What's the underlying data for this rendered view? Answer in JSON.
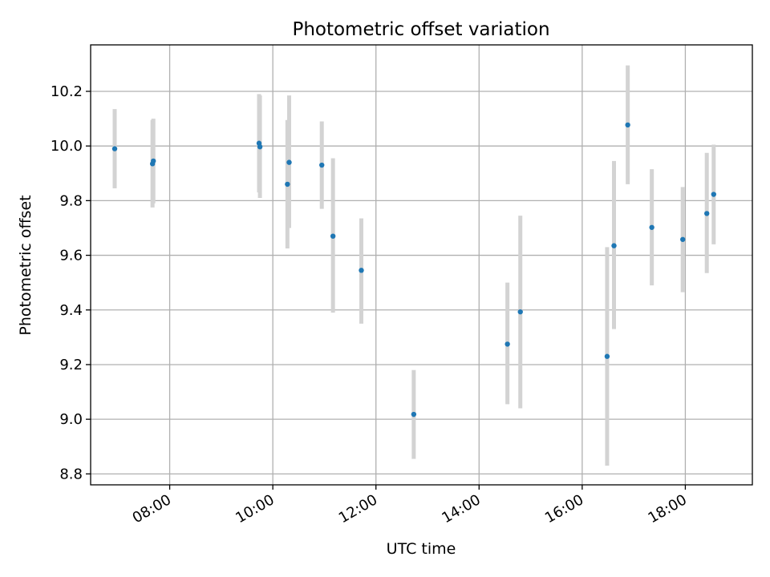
{
  "chart_data": {
    "type": "scatter",
    "title": "Photometric offset variation",
    "xlabel": "UTC time",
    "ylabel": "Photometric offset",
    "x_axis_type": "time",
    "x_ticks": [
      "08:00",
      "10:00",
      "12:00",
      "14:00",
      "16:00",
      "18:00"
    ],
    "y_ticks": [
      "8.8",
      "9.0",
      "9.2",
      "9.4",
      "9.6",
      "9.8",
      "10.0",
      "10.2"
    ],
    "xlim": [
      "06:28",
      "19:18"
    ],
    "ylim": [
      8.76,
      10.37
    ],
    "grid": true,
    "legend": "none",
    "series": [
      {
        "style": "points-with-error-bars",
        "points": [
          {
            "x": "06:56",
            "y": 9.99,
            "low": 9.845,
            "high": 10.135
          },
          {
            "x": "07:40",
            "y": 9.935,
            "low": 9.775,
            "high": 10.095
          },
          {
            "x": "07:41",
            "y": 9.945,
            "low": 9.79,
            "high": 10.1
          },
          {
            "x": "09:44",
            "y": 10.01,
            "low": 9.83,
            "high": 10.19
          },
          {
            "x": "09:45",
            "y": 9.997,
            "low": 9.81,
            "high": 10.185
          },
          {
            "x": "10:17",
            "y": 9.86,
            "low": 9.625,
            "high": 10.095
          },
          {
            "x": "10:19",
            "y": 9.94,
            "low": 9.7,
            "high": 10.185
          },
          {
            "x": "10:57",
            "y": 9.93,
            "low": 9.77,
            "high": 10.09
          },
          {
            "x": "11:10",
            "y": 9.67,
            "low": 9.39,
            "high": 9.955
          },
          {
            "x": "11:43",
            "y": 9.545,
            "low": 9.35,
            "high": 9.735
          },
          {
            "x": "12:44",
            "y": 9.018,
            "low": 8.855,
            "high": 9.18
          },
          {
            "x": "14:33",
            "y": 9.275,
            "low": 9.055,
            "high": 9.5
          },
          {
            "x": "14:48",
            "y": 9.393,
            "low": 9.04,
            "high": 9.745
          },
          {
            "x": "16:29",
            "y": 9.23,
            "low": 8.83,
            "high": 9.63
          },
          {
            "x": "16:37",
            "y": 9.635,
            "low": 9.33,
            "high": 9.945
          },
          {
            "x": "16:53",
            "y": 10.077,
            "low": 9.86,
            "high": 10.295
          },
          {
            "x": "17:21",
            "y": 9.702,
            "low": 9.49,
            "high": 9.915
          },
          {
            "x": "17:57",
            "y": 9.658,
            "low": 9.465,
            "high": 9.85
          },
          {
            "x": "18:25",
            "y": 9.753,
            "low": 9.535,
            "high": 9.975
          },
          {
            "x": "18:33",
            "y": 9.823,
            "low": 9.64,
            "high": 10.005
          }
        ]
      }
    ],
    "colors": {
      "marker": "#1f77b4",
      "error_bar": "#d3d3d3",
      "grid": "#b0b0b0",
      "axes": "#000000"
    }
  }
}
